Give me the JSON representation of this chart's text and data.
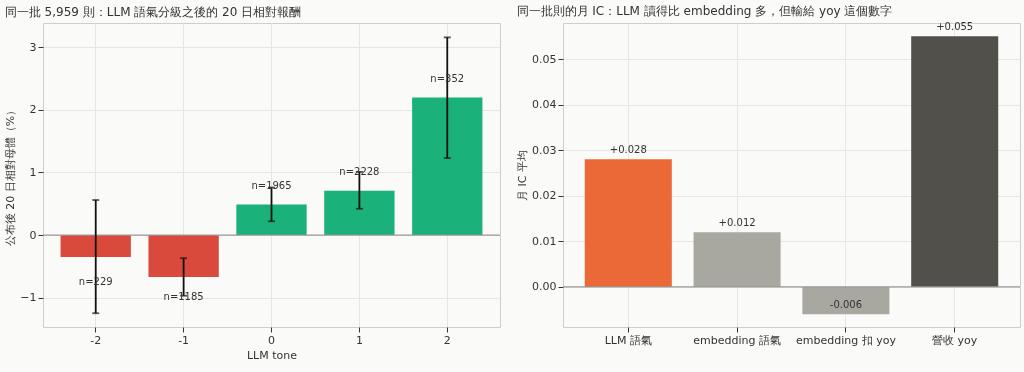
{
  "chart_data": [
    {
      "type": "bar",
      "title": "同一批 5,959 則：LLM 語氣分級之後的 20 日相對報酬",
      "xlabel": "LLM tone",
      "ylabel": "公布後 20 日相對母體（%）",
      "categories": [
        "-2",
        "-1",
        "0",
        "1",
        "2"
      ],
      "values": [
        -0.35,
        -0.67,
        0.49,
        0.71,
        2.2
      ],
      "colors": [
        "#d94a3d",
        "#d94a3d",
        "#1bb17a",
        "#1bb17a",
        "#1bb17a"
      ],
      "errors": [
        [
          -1.25,
          0.56
        ],
        [
          -0.97,
          -0.37
        ],
        [
          0.22,
          0.76
        ],
        [
          0.42,
          1.01
        ],
        [
          1.23,
          3.16
        ]
      ],
      "annotations": [
        {
          "text": "n=229",
          "x": "-2",
          "y": -0.75
        },
        {
          "text": "n=1185",
          "x": "-1",
          "y": -0.99
        },
        {
          "text": "n=1965",
          "x": "0",
          "y": 0.79
        },
        {
          "text": "n=2228",
          "x": "1",
          "y": 1.01
        },
        {
          "text": "n=352",
          "x": "2",
          "y": 2.5
        }
      ],
      "ylim": [
        -1.47,
        3.39
      ],
      "yticks": [
        -1,
        0,
        1,
        2,
        3
      ],
      "grid": true,
      "ref_lines": [
        {
          "axis": "y",
          "value": 0,
          "color": "#999999"
        }
      ]
    },
    {
      "type": "bar",
      "title": "同一批則的月 IC：LLM 讀得比 embedding 多，但輸給 yoy 這個數字",
      "ylabel": "月 IC 平均",
      "categories": [
        "LLM 語氣",
        "embedding 語氣",
        "embedding 扣 yoy",
        "營收 yoy"
      ],
      "values": [
        0.028,
        0.012,
        -0.006,
        0.055
      ],
      "colors": [
        "#eb6837",
        "#a9a8a0",
        "#a9a8a0",
        "#52504b"
      ],
      "value_labels": [
        "+0.028",
        "+0.012",
        "-0.006",
        "+0.055"
      ],
      "ylim": [
        -0.0088,
        0.0579
      ],
      "yticks": [
        {
          "value": 0,
          "label": "0.00"
        },
        0.01,
        0.02,
        0.03,
        0.04,
        0.05
      ],
      "grid": true,
      "ref_lines": [
        {
          "axis": "y",
          "value": 0,
          "color": "#999999"
        }
      ]
    }
  ]
}
